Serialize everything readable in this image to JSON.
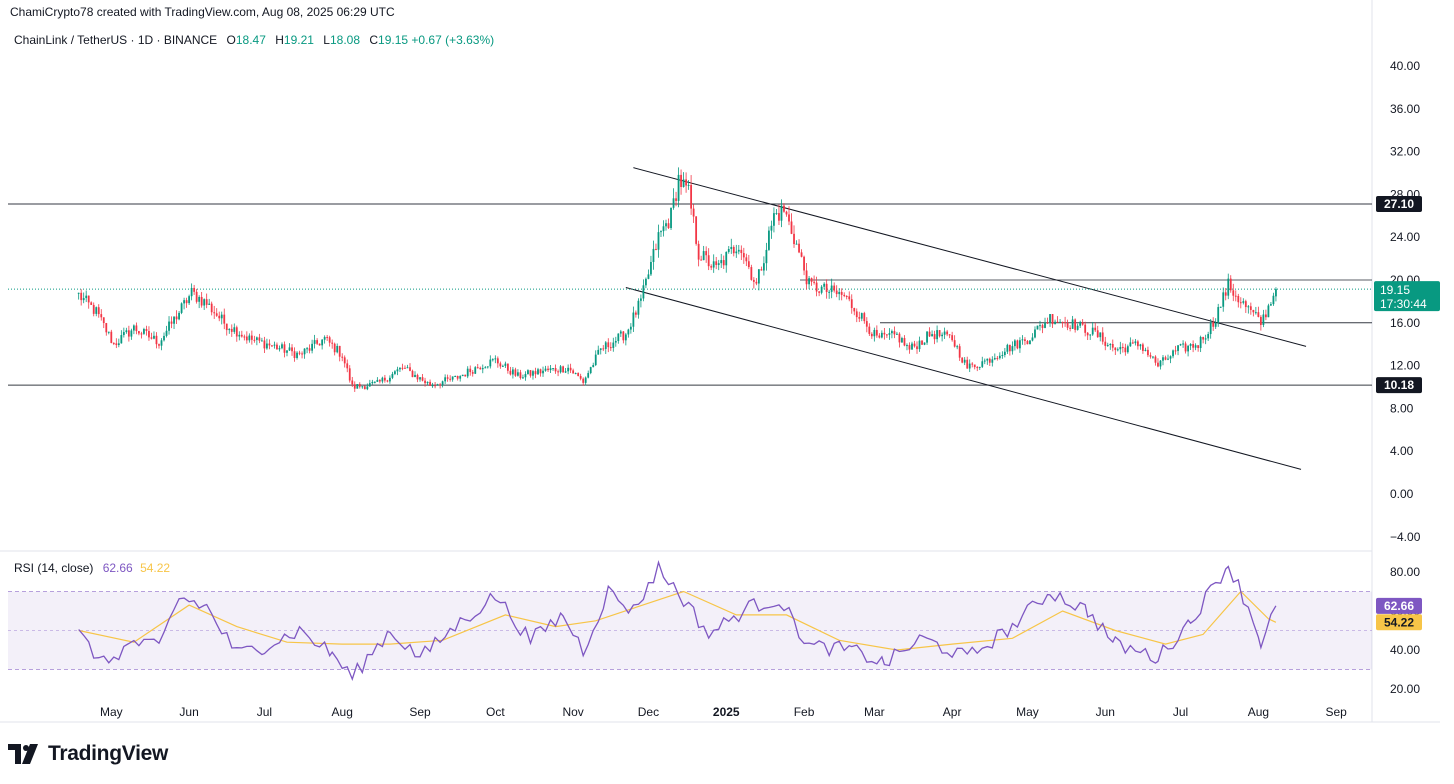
{
  "header": {
    "author_line": "ChamiCrypto78 created with TradingView.com, Aug 08, 2025 06:29 UTC"
  },
  "symbol": {
    "name": "ChainLink / TetherUS · 1D · BINANCE",
    "o_label": "O",
    "o": "18.47",
    "h_label": "H",
    "h": "19.21",
    "l_label": "L",
    "l": "18.08",
    "c_label": "C",
    "c": "19.15",
    "change": "+0.67 (+3.63%)"
  },
  "rsi_legend": {
    "label": "RSI (14, close)",
    "rsi": "62.66",
    "ma": "54.22"
  },
  "price_badges": {
    "current_price": "19.15",
    "countdown": "17:30:44",
    "resistance": "27.10",
    "support": "10.18"
  },
  "rsi_badges": {
    "rsi": "62.66",
    "ma": "54.22"
  },
  "logo": {
    "text": "TradingView"
  },
  "colors": {
    "up": "#089981",
    "down": "#f23645",
    "rsi": "#7e57c2",
    "rsi_ma": "#f7c548",
    "rsi_band": "#7e57c2",
    "badge_dark": "#131722",
    "badge_green": "#089981"
  },
  "chart_data": [
    {
      "type": "candlestick",
      "symbol": "LINKUSDT",
      "interval": "1D",
      "y_ticks": [
        "40.00",
        "36.00",
        "32.00",
        "28.00",
        "24.00",
        "20.00",
        "16.00",
        "12.00",
        "8.00",
        "4.00",
        "0.00",
        "−4.00"
      ],
      "ylim": [
        -4,
        40
      ],
      "x_ticks": [
        "May",
        "Jun",
        "Jul",
        "Aug",
        "Sep",
        "Oct",
        "Nov",
        "Dec",
        "2025",
        "Feb",
        "Mar",
        "Apr",
        "May",
        "Jun",
        "Jul",
        "Aug",
        "Sep"
      ],
      "xlim": [
        "2024-04-18",
        "2025-09-20"
      ],
      "close_series": [
        [
          "2024-04-18",
          18.6
        ],
        [
          "2024-04-25",
          17.0
        ],
        [
          "2024-05-02",
          14.0
        ],
        [
          "2024-05-10",
          15.5
        ],
        [
          "2024-05-20",
          14.2
        ],
        [
          "2024-05-28",
          17.0
        ],
        [
          "2024-06-02",
          18.8
        ],
        [
          "2024-06-08",
          17.8
        ],
        [
          "2024-06-15",
          16.0
        ],
        [
          "2024-06-25",
          14.5
        ],
        [
          "2024-07-05",
          13.8
        ],
        [
          "2024-07-15",
          13.0
        ],
        [
          "2024-07-25",
          14.5
        ],
        [
          "2024-08-01",
          13.0
        ],
        [
          "2024-08-05",
          10.0
        ],
        [
          "2024-08-15",
          10.3
        ],
        [
          "2024-08-25",
          11.8
        ],
        [
          "2024-09-05",
          10.2
        ],
        [
          "2024-09-15",
          10.8
        ],
        [
          "2024-09-25",
          12.0
        ],
        [
          "2024-10-01",
          12.5
        ],
        [
          "2024-10-10",
          11.0
        ],
        [
          "2024-10-20",
          11.5
        ],
        [
          "2024-10-30",
          11.8
        ],
        [
          "2024-11-05",
          10.5
        ],
        [
          "2024-11-12",
          13.5
        ],
        [
          "2024-11-22",
          15.0
        ],
        [
          "2024-11-28",
          18.0
        ],
        [
          "2024-12-05",
          24.0
        ],
        [
          "2024-12-10",
          26.0
        ],
        [
          "2024-12-13",
          29.5
        ],
        [
          "2024-12-17",
          28.0
        ],
        [
          "2024-12-21",
          22.5
        ],
        [
          "2024-12-28",
          21.0
        ],
        [
          "2025-01-06",
          23.5
        ],
        [
          "2025-01-13",
          19.5
        ],
        [
          "2025-01-20",
          26.0
        ],
        [
          "2025-01-24",
          26.5
        ],
        [
          "2025-01-28",
          24.0
        ],
        [
          "2025-02-03",
          19.5
        ],
        [
          "2025-02-10",
          19.0
        ],
        [
          "2025-02-17",
          18.5
        ],
        [
          "2025-02-24",
          16.5
        ],
        [
          "2025-03-02",
          14.5
        ],
        [
          "2025-03-10",
          14.8
        ],
        [
          "2025-03-15",
          13.5
        ],
        [
          "2025-03-24",
          15.0
        ],
        [
          "2025-04-01",
          14.5
        ],
        [
          "2025-04-07",
          11.8
        ],
        [
          "2025-04-15",
          12.5
        ],
        [
          "2025-04-22",
          13.5
        ],
        [
          "2025-05-01",
          14.5
        ],
        [
          "2025-05-10",
          16.5
        ],
        [
          "2025-05-20",
          15.8
        ],
        [
          "2025-05-28",
          15.0
        ],
        [
          "2025-06-05",
          13.5
        ],
        [
          "2025-06-15",
          14.0
        ],
        [
          "2025-06-22",
          12.0
        ],
        [
          "2025-06-30",
          13.5
        ],
        [
          "2025-07-08",
          14.0
        ],
        [
          "2025-07-14",
          16.0
        ],
        [
          "2025-07-20",
          19.5
        ],
        [
          "2025-07-25",
          18.0
        ],
        [
          "2025-08-02",
          16.0
        ],
        [
          "2025-08-05",
          17.5
        ],
        [
          "2025-08-08",
          19.15
        ]
      ],
      "horizontal_levels": [
        27.1,
        20.0,
        16.0,
        10.18
      ],
      "trendlines": [
        {
          "from": [
            "2024-11-25",
            30.5
          ],
          "to": [
            "2025-08-20",
            13.8
          ]
        },
        {
          "from": [
            "2024-11-22",
            19.3
          ],
          "to": [
            "2025-08-18",
            2.3
          ]
        }
      ],
      "last_price": 19.15
    },
    {
      "type": "line",
      "title": "RSI (14, close)",
      "y_ticks": [
        "80.00",
        "60.00",
        "40.00",
        "20.00"
      ],
      "ylim": [
        20,
        80
      ],
      "bands": {
        "upper": 70,
        "middle": 50,
        "lower": 30
      },
      "series": [
        {
          "name": "RSI",
          "values": [
            [
              "2024-04-18",
              48
            ],
            [
              "2024-04-28",
              33
            ],
            [
              "2024-05-10",
              44
            ],
            [
              "2024-05-20",
              41
            ],
            [
              "2024-05-28",
              67
            ],
            [
              "2024-06-08",
              62
            ],
            [
              "2024-06-20",
              38
            ],
            [
              "2024-07-01",
              42
            ],
            [
              "2024-07-15",
              50
            ],
            [
              "2024-07-28",
              38
            ],
            [
              "2024-08-05",
              26
            ],
            [
              "2024-08-20",
              50
            ],
            [
              "2024-09-01",
              36
            ],
            [
              "2024-09-15",
              52
            ],
            [
              "2024-10-01",
              68
            ],
            [
              "2024-10-15",
              45
            ],
            [
              "2024-10-28",
              58
            ],
            [
              "2024-11-05",
              40
            ],
            [
              "2024-11-15",
              70
            ],
            [
              "2024-11-25",
              60
            ],
            [
              "2024-12-05",
              82
            ],
            [
              "2024-12-15",
              66
            ],
            [
              "2024-12-25",
              48
            ],
            [
              "2025-01-10",
              62
            ],
            [
              "2025-01-22",
              66
            ],
            [
              "2025-02-03",
              42
            ],
            [
              "2025-02-20",
              40
            ],
            [
              "2025-03-05",
              33
            ],
            [
              "2025-03-20",
              46
            ],
            [
              "2025-04-07",
              36
            ],
            [
              "2025-04-25",
              52
            ],
            [
              "2025-05-10",
              70
            ],
            [
              "2025-05-25",
              60
            ],
            [
              "2025-06-05",
              43
            ],
            [
              "2025-06-22",
              36
            ],
            [
              "2025-07-05",
              55
            ],
            [
              "2025-07-20",
              84
            ],
            [
              "2025-07-28",
              62
            ],
            [
              "2025-08-02",
              44
            ],
            [
              "2025-08-08",
              62.66
            ]
          ]
        },
        {
          "name": "RSI-based MA",
          "values": [
            [
              "2024-04-18",
              50
            ],
            [
              "2024-05-10",
              44
            ],
            [
              "2024-06-01",
              63
            ],
            [
              "2024-06-20",
              52
            ],
            [
              "2024-07-10",
              44
            ],
            [
              "2024-08-01",
              43
            ],
            [
              "2024-08-20",
              43
            ],
            [
              "2024-09-10",
              45
            ],
            [
              "2024-10-05",
              58
            ],
            [
              "2024-10-25",
              52
            ],
            [
              "2024-11-10",
              55
            ],
            [
              "2024-12-01",
              64
            ],
            [
              "2024-12-15",
              70
            ],
            [
              "2025-01-05",
              58
            ],
            [
              "2025-01-25",
              58
            ],
            [
              "2025-02-15",
              45
            ],
            [
              "2025-03-10",
              40
            ],
            [
              "2025-04-01",
              43
            ],
            [
              "2025-04-25",
              46
            ],
            [
              "2025-05-15",
              60
            ],
            [
              "2025-06-05",
              50
            ],
            [
              "2025-06-25",
              43
            ],
            [
              "2025-07-10",
              48
            ],
            [
              "2025-07-25",
              70
            ],
            [
              "2025-08-05",
              56
            ],
            [
              "2025-08-08",
              54.22
            ]
          ]
        }
      ]
    }
  ]
}
